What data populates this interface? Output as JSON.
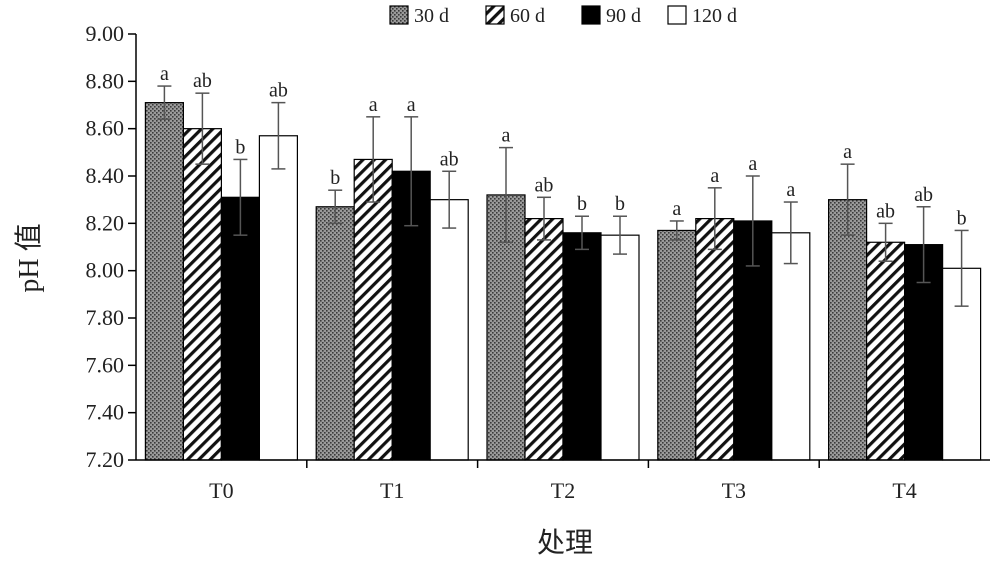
{
  "chart_data": {
    "type": "bar",
    "title": "",
    "xlabel": "处理",
    "ylabel": "pH 值",
    "ylim": [
      7.2,
      9.0
    ],
    "yticks": [
      "9.00",
      "8.80",
      "8.60",
      "8.40",
      "8.20",
      "8.00",
      "7.80",
      "7.60",
      "7.40",
      "7.20"
    ],
    "categories": [
      "T0",
      "T1",
      "T2",
      "T3",
      "T4"
    ],
    "legend_position": "top-right",
    "series": [
      {
        "name": "30 d",
        "pattern": "dotted",
        "values": [
          8.71,
          8.27,
          8.32,
          8.17,
          8.3
        ],
        "errors": [
          0.07,
          0.07,
          0.2,
          0.04,
          0.15
        ],
        "labels": [
          "a",
          "b",
          "a",
          "a",
          "a"
        ]
      },
      {
        "name": "60 d",
        "pattern": "hatch",
        "values": [
          8.6,
          8.47,
          8.22,
          8.22,
          8.12
        ],
        "errors": [
          0.15,
          0.18,
          0.09,
          0.13,
          0.08
        ],
        "labels": [
          "ab",
          "a",
          "ab",
          "a",
          "ab"
        ]
      },
      {
        "name": "90 d",
        "pattern": "solid",
        "values": [
          8.31,
          8.42,
          8.16,
          8.21,
          8.11
        ],
        "errors": [
          0.16,
          0.23,
          0.07,
          0.19,
          0.16
        ],
        "labels": [
          "b",
          "a",
          "b",
          "a",
          "ab"
        ]
      },
      {
        "name": "120 d",
        "pattern": "empty",
        "values": [
          8.57,
          8.3,
          8.15,
          8.16,
          8.01
        ],
        "errors": [
          0.14,
          0.12,
          0.08,
          0.13,
          0.16
        ],
        "labels": [
          "ab",
          "ab",
          "b",
          "a",
          "b"
        ]
      }
    ]
  }
}
